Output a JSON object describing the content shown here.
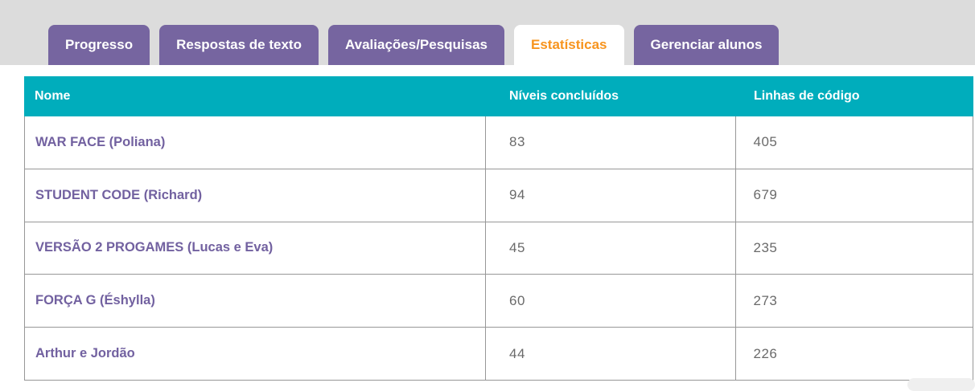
{
  "tabs": [
    {
      "label": "Progresso",
      "active": false
    },
    {
      "label": "Respostas de texto",
      "active": false
    },
    {
      "label": "Avaliações/Pesquisas",
      "active": false
    },
    {
      "label": "Estatísticas",
      "active": true
    },
    {
      "label": "Gerenciar alunos",
      "active": false
    }
  ],
  "table": {
    "columns": [
      "Nome",
      "Níveis concluídos",
      "Linhas de código"
    ],
    "rows": [
      {
        "name": "WAR FACE (Poliana)",
        "levels": "83",
        "lines": "405"
      },
      {
        "name": "STUDENT CODE (Richard)",
        "levels": "94",
        "lines": "679"
      },
      {
        "name": "VERSÃO 2 PROGAMES (Lucas e Eva)",
        "levels": "45",
        "lines": "235"
      },
      {
        "name": "FORÇA G (Éshylla)",
        "levels": "60",
        "lines": "273"
      },
      {
        "name": "Arthur e Jordão",
        "levels": "44",
        "lines": "226"
      }
    ]
  },
  "colors": {
    "tab_purple": "#7665a0",
    "active_tab_orange": "#f7941e",
    "header_teal": "#00adbc",
    "name_purple": "#7261a0",
    "number_gray": "#6a6a6a",
    "band_gray": "#dcdcdc",
    "border_gray": "#979797"
  }
}
